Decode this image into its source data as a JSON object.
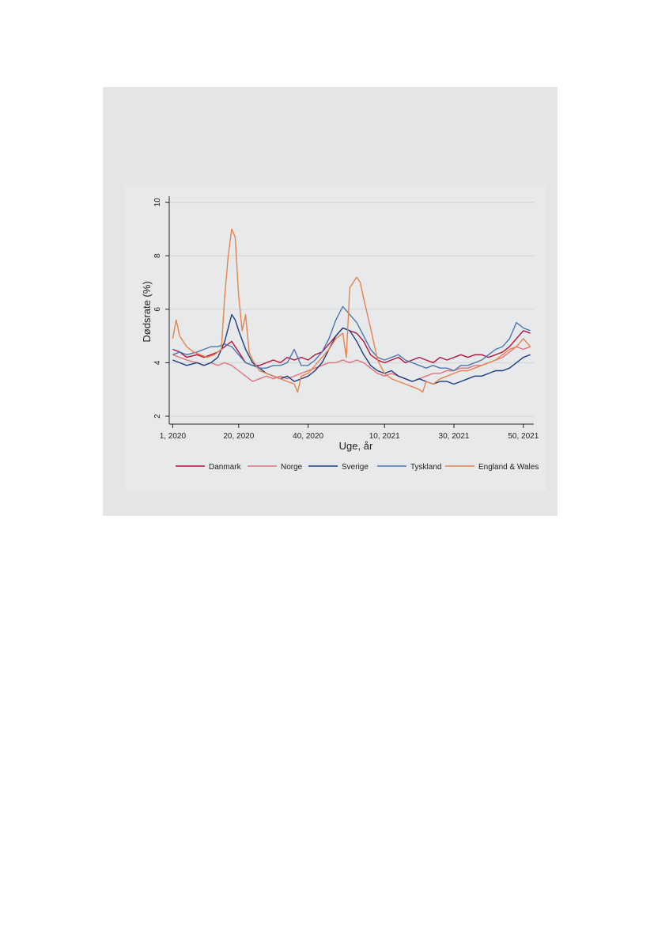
{
  "chart_data": {
    "type": "line",
    "xlabel": "Uge, år",
    "ylabel": "Dødsrate (%)",
    "ylim": [
      2,
      10
    ],
    "yticks": [
      "2",
      "4",
      "6",
      "8",
      "10"
    ],
    "xticks": [
      {
        "week_index": 1,
        "label": "1, 2020"
      },
      {
        "week_index": 20,
        "label": "20, 2020"
      },
      {
        "week_index": 40,
        "label": "40, 2020"
      },
      {
        "week_index": 62,
        "label": "10, 2021"
      },
      {
        "week_index": 82,
        "label": "30, 2021"
      },
      {
        "week_index": 102,
        "label": "50, 2021"
      }
    ],
    "grid": true,
    "legend_position": "bottom",
    "series": [
      {
        "name": "Danmark",
        "color": "#b5123a",
        "keypoints": [
          [
            1,
            4.5
          ],
          [
            3,
            4.4
          ],
          [
            5,
            4.2
          ],
          [
            8,
            4.3
          ],
          [
            10,
            4.2
          ],
          [
            12,
            4.3
          ],
          [
            14,
            4.4
          ],
          [
            16,
            4.6
          ],
          [
            18,
            4.8
          ],
          [
            20,
            4.4
          ],
          [
            22,
            4.0
          ],
          [
            24,
            3.9
          ],
          [
            26,
            3.9
          ],
          [
            28,
            4.0
          ],
          [
            30,
            4.1
          ],
          [
            32,
            4.0
          ],
          [
            34,
            4.2
          ],
          [
            36,
            4.1
          ],
          [
            38,
            4.2
          ],
          [
            40,
            4.1
          ],
          [
            42,
            4.3
          ],
          [
            44,
            4.4
          ],
          [
            46,
            4.7
          ],
          [
            48,
            5.0
          ],
          [
            50,
            5.3
          ],
          [
            52,
            5.2
          ],
          [
            54,
            5.1
          ],
          [
            56,
            4.8
          ],
          [
            58,
            4.3
          ],
          [
            60,
            4.1
          ],
          [
            62,
            4.0
          ],
          [
            64,
            4.1
          ],
          [
            66,
            4.2
          ],
          [
            68,
            4.0
          ],
          [
            70,
            4.1
          ],
          [
            72,
            4.2
          ],
          [
            74,
            4.1
          ],
          [
            76,
            4.0
          ],
          [
            78,
            4.2
          ],
          [
            80,
            4.1
          ],
          [
            82,
            4.2
          ],
          [
            84,
            4.3
          ],
          [
            86,
            4.2
          ],
          [
            88,
            4.3
          ],
          [
            90,
            4.3
          ],
          [
            92,
            4.2
          ],
          [
            94,
            4.3
          ],
          [
            96,
            4.4
          ],
          [
            98,
            4.6
          ],
          [
            100,
            4.9
          ],
          [
            102,
            5.2
          ],
          [
            104,
            5.1
          ]
        ]
      },
      {
        "name": "Norge",
        "color": "#e0727f",
        "keypoints": [
          [
            1,
            4.3
          ],
          [
            3,
            4.2
          ],
          [
            5,
            4.1
          ],
          [
            8,
            4.0
          ],
          [
            10,
            3.9
          ],
          [
            12,
            4.0
          ],
          [
            14,
            3.9
          ],
          [
            16,
            4.0
          ],
          [
            18,
            3.9
          ],
          [
            20,
            3.7
          ],
          [
            22,
            3.5
          ],
          [
            24,
            3.3
          ],
          [
            26,
            3.4
          ],
          [
            28,
            3.5
          ],
          [
            30,
            3.4
          ],
          [
            32,
            3.5
          ],
          [
            34,
            3.4
          ],
          [
            36,
            3.5
          ],
          [
            38,
            3.6
          ],
          [
            40,
            3.7
          ],
          [
            42,
            3.8
          ],
          [
            44,
            3.9
          ],
          [
            46,
            4.0
          ],
          [
            48,
            4.0
          ],
          [
            50,
            4.1
          ],
          [
            52,
            4.0
          ],
          [
            54,
            4.1
          ],
          [
            56,
            4.0
          ],
          [
            58,
            3.8
          ],
          [
            60,
            3.6
          ],
          [
            62,
            3.5
          ],
          [
            64,
            3.6
          ],
          [
            66,
            3.5
          ],
          [
            68,
            3.4
          ],
          [
            70,
            3.3
          ],
          [
            72,
            3.4
          ],
          [
            74,
            3.5
          ],
          [
            76,
            3.6
          ],
          [
            78,
            3.6
          ],
          [
            80,
            3.7
          ],
          [
            82,
            3.7
          ],
          [
            84,
            3.8
          ],
          [
            86,
            3.8
          ],
          [
            88,
            3.9
          ],
          [
            90,
            3.9
          ],
          [
            92,
            4.0
          ],
          [
            94,
            4.1
          ],
          [
            96,
            4.2
          ],
          [
            98,
            4.4
          ],
          [
            100,
            4.6
          ],
          [
            102,
            4.5
          ],
          [
            104,
            4.6
          ]
        ]
      },
      {
        "name": "Sverige",
        "color": "#1a3f7f",
        "keypoints": [
          [
            1,
            4.1
          ],
          [
            3,
            4.0
          ],
          [
            5,
            3.9
          ],
          [
            8,
            4.0
          ],
          [
            10,
            3.9
          ],
          [
            12,
            4.0
          ],
          [
            14,
            4.2
          ],
          [
            16,
            4.8
          ],
          [
            18,
            5.8
          ],
          [
            19,
            5.6
          ],
          [
            20,
            5.2
          ],
          [
            22,
            4.5
          ],
          [
            24,
            4.0
          ],
          [
            26,
            3.8
          ],
          [
            28,
            3.6
          ],
          [
            30,
            3.5
          ],
          [
            32,
            3.4
          ],
          [
            34,
            3.5
          ],
          [
            36,
            3.3
          ],
          [
            38,
            3.4
          ],
          [
            40,
            3.5
          ],
          [
            42,
            3.7
          ],
          [
            44,
            4.0
          ],
          [
            46,
            4.5
          ],
          [
            48,
            5.0
          ],
          [
            50,
            5.3
          ],
          [
            52,
            5.2
          ],
          [
            54,
            4.8
          ],
          [
            56,
            4.3
          ],
          [
            58,
            3.9
          ],
          [
            60,
            3.7
          ],
          [
            62,
            3.6
          ],
          [
            64,
            3.7
          ],
          [
            66,
            3.5
          ],
          [
            68,
            3.4
          ],
          [
            70,
            3.3
          ],
          [
            72,
            3.4
          ],
          [
            74,
            3.3
          ],
          [
            76,
            3.2
          ],
          [
            78,
            3.3
          ],
          [
            80,
            3.3
          ],
          [
            82,
            3.2
          ],
          [
            84,
            3.3
          ],
          [
            86,
            3.4
          ],
          [
            88,
            3.5
          ],
          [
            90,
            3.5
          ],
          [
            92,
            3.6
          ],
          [
            94,
            3.7
          ],
          [
            96,
            3.7
          ],
          [
            98,
            3.8
          ],
          [
            100,
            4.0
          ],
          [
            102,
            4.2
          ],
          [
            104,
            4.3
          ]
        ]
      },
      {
        "name": "Tyskland",
        "color": "#4b76b1",
        "keypoints": [
          [
            1,
            4.3
          ],
          [
            3,
            4.4
          ],
          [
            5,
            4.3
          ],
          [
            8,
            4.4
          ],
          [
            10,
            4.5
          ],
          [
            12,
            4.6
          ],
          [
            14,
            4.6
          ],
          [
            16,
            4.7
          ],
          [
            18,
            4.6
          ],
          [
            20,
            4.3
          ],
          [
            22,
            4.0
          ],
          [
            24,
            3.9
          ],
          [
            26,
            3.8
          ],
          [
            28,
            3.8
          ],
          [
            30,
            3.9
          ],
          [
            32,
            3.9
          ],
          [
            34,
            4.0
          ],
          [
            36,
            4.5
          ],
          [
            38,
            3.9
          ],
          [
            40,
            3.9
          ],
          [
            42,
            4.1
          ],
          [
            44,
            4.4
          ],
          [
            46,
            4.9
          ],
          [
            48,
            5.6
          ],
          [
            50,
            6.1
          ],
          [
            52,
            5.8
          ],
          [
            54,
            5.5
          ],
          [
            56,
            5.0
          ],
          [
            58,
            4.5
          ],
          [
            60,
            4.2
          ],
          [
            62,
            4.1
          ],
          [
            64,
            4.2
          ],
          [
            66,
            4.3
          ],
          [
            68,
            4.1
          ],
          [
            70,
            4.0
          ],
          [
            72,
            3.9
          ],
          [
            74,
            3.8
          ],
          [
            76,
            3.9
          ],
          [
            78,
            3.8
          ],
          [
            80,
            3.8
          ],
          [
            82,
            3.7
          ],
          [
            84,
            3.9
          ],
          [
            86,
            3.9
          ],
          [
            88,
            4.0
          ],
          [
            90,
            4.1
          ],
          [
            92,
            4.3
          ],
          [
            94,
            4.5
          ],
          [
            96,
            4.6
          ],
          [
            98,
            4.9
          ],
          [
            100,
            5.5
          ],
          [
            102,
            5.3
          ],
          [
            104,
            5.2
          ]
        ]
      },
      {
        "name": "England & Wales",
        "color": "#e5834e",
        "keypoints": [
          [
            1,
            4.9
          ],
          [
            2,
            5.6
          ],
          [
            3,
            5.0
          ],
          [
            5,
            4.6
          ],
          [
            7,
            4.4
          ],
          [
            9,
            4.3
          ],
          [
            11,
            4.2
          ],
          [
            13,
            4.3
          ],
          [
            15,
            4.5
          ],
          [
            16,
            6.5
          ],
          [
            17,
            8.0
          ],
          [
            18,
            9.0
          ],
          [
            19,
            8.7
          ],
          [
            20,
            6.5
          ],
          [
            21,
            5.2
          ],
          [
            22,
            5.8
          ],
          [
            23,
            4.4
          ],
          [
            24,
            4.1
          ],
          [
            26,
            3.7
          ],
          [
            28,
            3.6
          ],
          [
            30,
            3.5
          ],
          [
            32,
            3.4
          ],
          [
            34,
            3.3
          ],
          [
            36,
            3.2
          ],
          [
            37,
            2.9
          ],
          [
            38,
            3.5
          ],
          [
            40,
            3.6
          ],
          [
            42,
            3.9
          ],
          [
            44,
            4.2
          ],
          [
            46,
            4.5
          ],
          [
            48,
            4.9
          ],
          [
            50,
            5.1
          ],
          [
            51,
            4.2
          ],
          [
            52,
            6.8
          ],
          [
            53,
            7.0
          ],
          [
            54,
            7.2
          ],
          [
            55,
            7.0
          ],
          [
            56,
            6.4
          ],
          [
            58,
            5.3
          ],
          [
            60,
            4.1
          ],
          [
            62,
            3.6
          ],
          [
            64,
            3.4
          ],
          [
            66,
            3.3
          ],
          [
            68,
            3.2
          ],
          [
            70,
            3.1
          ],
          [
            72,
            3.0
          ],
          [
            73,
            2.9
          ],
          [
            74,
            3.3
          ],
          [
            76,
            3.2
          ],
          [
            78,
            3.4
          ],
          [
            80,
            3.5
          ],
          [
            82,
            3.6
          ],
          [
            84,
            3.7
          ],
          [
            86,
            3.7
          ],
          [
            88,
            3.8
          ],
          [
            90,
            3.9
          ],
          [
            92,
            4.0
          ],
          [
            94,
            4.1
          ],
          [
            96,
            4.3
          ],
          [
            98,
            4.5
          ],
          [
            100,
            4.6
          ],
          [
            102,
            4.9
          ],
          [
            104,
            4.6
          ]
        ]
      }
    ]
  }
}
